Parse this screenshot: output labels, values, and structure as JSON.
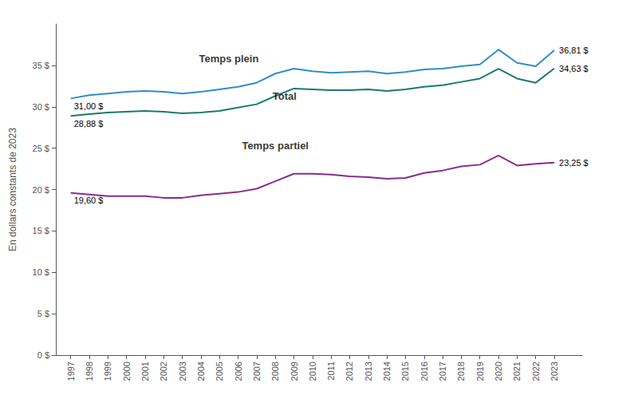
{
  "chart_data": {
    "type": "line",
    "ylabel": "En dollars constants de 2023",
    "x": [
      1997,
      1998,
      1999,
      2000,
      2001,
      2002,
      2003,
      2004,
      2005,
      2006,
      2007,
      2008,
      2009,
      2010,
      2011,
      2012,
      2013,
      2014,
      2015,
      2016,
      2017,
      2018,
      2019,
      2020,
      2021,
      2022,
      2023
    ],
    "xlim": [
      1996.2,
      2024.5
    ],
    "xticks": [
      1997,
      1998,
      1999,
      2000,
      2001,
      2002,
      2003,
      2004,
      2005,
      2006,
      2007,
      2008,
      2009,
      2010,
      2011,
      2012,
      2013,
      2014,
      2015,
      2016,
      2017,
      2018,
      2019,
      2020,
      2021,
      2022,
      2023
    ],
    "ylim": [
      0,
      40
    ],
    "yticks": [
      {
        "value": 0,
        "label": "0 $"
      },
      {
        "value": 5,
        "label": "5 $"
      },
      {
        "value": 10,
        "label": "10 $"
      },
      {
        "value": 15,
        "label": "15 $"
      },
      {
        "value": 20,
        "label": "20 $"
      },
      {
        "value": 25,
        "label": "25 $"
      },
      {
        "value": 30,
        "label": "30 $"
      },
      {
        "value": 35,
        "label": "35 $"
      }
    ],
    "grid": false,
    "series": [
      {
        "color": "#2e8ec9",
        "values": [
          31.0,
          31.4,
          31.6,
          31.8,
          31.9,
          31.8,
          31.6,
          31.8,
          32.1,
          32.4,
          32.9,
          34.0,
          34.6,
          34.3,
          34.1,
          34.2,
          34.3,
          34.0,
          34.2,
          34.5,
          34.6,
          34.9,
          35.1,
          36.9,
          35.3,
          34.9,
          36.81
        ],
        "value_labels": [
          "31,00 $",
          null,
          null,
          null,
          null,
          null,
          null,
          null,
          null,
          null,
          null,
          null,
          null,
          null,
          null,
          null,
          null,
          null,
          null,
          null,
          null,
          null,
          null,
          null,
          null,
          null,
          "36,81 $"
        ]
      },
      {
        "color": "#1a7a6e",
        "values": [
          28.88,
          29.1,
          29.3,
          29.4,
          29.5,
          29.4,
          29.2,
          29.3,
          29.5,
          29.9,
          30.3,
          31.3,
          32.2,
          32.1,
          32.0,
          32.0,
          32.1,
          31.9,
          32.1,
          32.4,
          32.6,
          33.0,
          33.4,
          34.6,
          33.4,
          32.9,
          34.63
        ],
        "value_labels": [
          "28,88 $",
          null,
          null,
          null,
          null,
          null,
          null,
          null,
          null,
          null,
          null,
          null,
          null,
          null,
          null,
          null,
          null,
          null,
          null,
          null,
          null,
          null,
          null,
          null,
          null,
          null,
          "34,63 $"
        ]
      },
      {
        "color": "#8b2b8b",
        "values": [
          19.6,
          19.4,
          19.2,
          19.2,
          19.2,
          19.0,
          19.0,
          19.3,
          19.5,
          19.7,
          20.1,
          21.0,
          21.9,
          21.9,
          21.8,
          21.6,
          21.5,
          21.3,
          21.4,
          22.0,
          22.3,
          22.8,
          23.0,
          24.1,
          22.9,
          23.1,
          23.25
        ],
        "value_labels": [
          "19,60 $",
          null,
          null,
          null,
          null,
          null,
          null,
          null,
          null,
          null,
          null,
          null,
          null,
          null,
          null,
          null,
          null,
          null,
          null,
          null,
          null,
          null,
          null,
          null,
          null,
          null,
          "23,25 $"
        ]
      }
    ],
    "annotations": [
      {
        "text": "Temps plein",
        "x": 2005.5,
        "y": 35.0
      },
      {
        "text": "Total",
        "x": 2008.5,
        "y": 30.5
      },
      {
        "text": "Temps partiel",
        "x": 2008.0,
        "y": 24.5
      }
    ]
  }
}
